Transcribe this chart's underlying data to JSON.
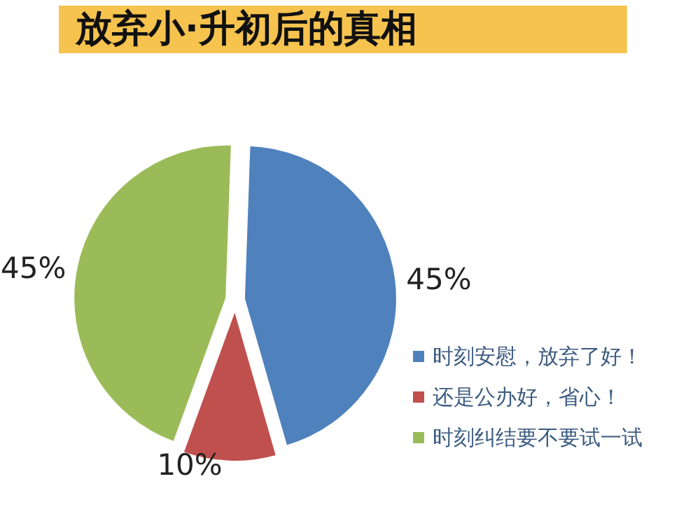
{
  "chart_data": {
    "type": "pie",
    "title": "放弃小·升初后的真相",
    "categories": [
      "时刻安慰，放弃了好！",
      "还是公办好，省心！",
      "时刻纠结要不要试一试"
    ],
    "values": [
      45,
      10,
      45
    ],
    "colors": [
      "#4f81bd",
      "#c0504d",
      "#9bbb59"
    ],
    "value_labels": [
      "45%",
      "10%",
      "45%"
    ],
    "legend": "bottom right"
  }
}
